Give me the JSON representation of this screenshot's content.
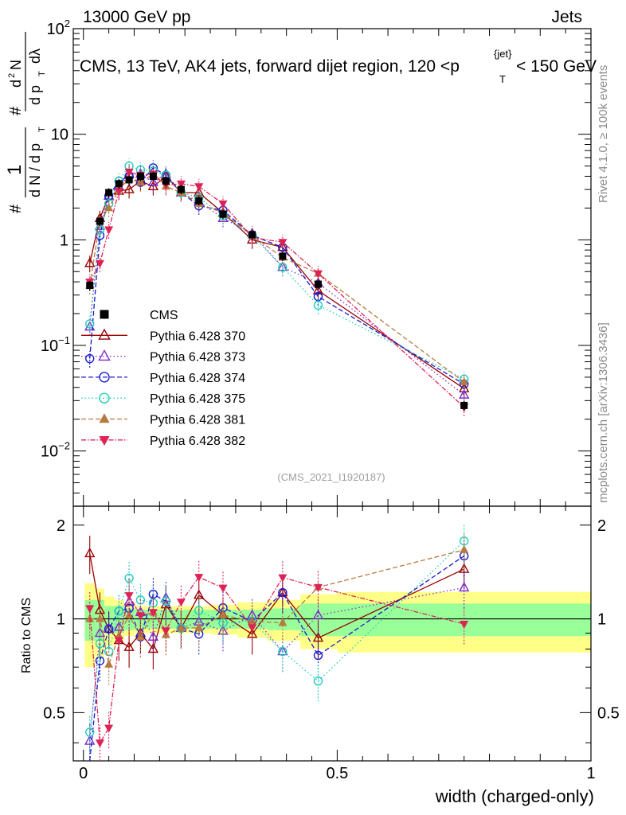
{
  "header": {
    "left": "13000 GeV pp",
    "right": "Jets",
    "title_main": "CMS, 13 TeV, AK4 jets, forward dijet region, 120 <p",
    "title_sup": "{jet}",
    "title_sub": "T",
    "title_tail": "< 150 GeV"
  },
  "side_labels": {
    "rivet": "Rivet 4.1.0, ≥ 100k events",
    "mcplots": "mcplots.cern.ch [arXiv:1306.3436]"
  },
  "watermark": "(CMS_2021_I1920187)",
  "chart_data": {
    "type": "scatter",
    "xlabel": "width (charged-only)",
    "ylabel_top": "1/dN/dp_T d²N/dp_T dλ",
    "ylabel_bottom": "Ratio to CMS",
    "xlim": [
      0,
      1
    ],
    "ylim_top": [
      0.003,
      100
    ],
    "ylim_bottom": [
      0.35,
      2.3
    ],
    "y_scale_top": "log",
    "legend_position": "middle-left",
    "x": [
      0.0125,
      0.0325,
      0.05,
      0.07,
      0.09,
      0.1125,
      0.1375,
      0.1625,
      0.1925,
      0.2275,
      0.275,
      0.3325,
      0.3925,
      0.4625,
      0.75
    ],
    "ref": {
      "name": "CMS",
      "values": [
        0.37,
        1.5,
        2.8,
        3.4,
        3.7,
        4.0,
        4.0,
        3.6,
        3.0,
        2.35,
        1.75,
        1.12,
        0.7,
        0.38,
        0.027
      ],
      "ratio_band_inner": [
        0.15,
        0.15,
        0.1,
        0.1,
        0.08,
        0.07,
        0.07,
        0.07,
        0.07,
        0.07,
        0.07,
        0.07,
        0.08,
        0.12,
        0.12
      ],
      "ratio_band_outer": [
        0.3,
        0.25,
        0.18,
        0.15,
        0.12,
        0.1,
        0.1,
        0.1,
        0.1,
        0.1,
        0.11,
        0.13,
        0.15,
        0.2,
        0.22
      ]
    },
    "series": [
      {
        "name": "Pythia 6.428 370",
        "color": "#990000",
        "marker": "triangle-open",
        "dash": "",
        "values": [
          0.6,
          1.6,
          2.6,
          2.9,
          3.0,
          3.6,
          3.2,
          4.0,
          2.8,
          2.8,
          1.8,
          1.0,
          0.85,
          0.33,
          0.039
        ]
      },
      {
        "name": "Pythia 6.428 373",
        "color": "#7b2ccc",
        "marker": "triangle-open",
        "dash": "1.5,3",
        "values": [
          0.15,
          1.35,
          2.6,
          3.2,
          4.2,
          4.2,
          3.5,
          4.2,
          2.8,
          2.3,
          1.6,
          1.15,
          0.55,
          0.39,
          0.034
        ]
      },
      {
        "name": "Pythia 6.428 374",
        "color": "#1a1acc",
        "marker": "circle-open",
        "dash": "6,3",
        "values": [
          0.075,
          1.1,
          2.6,
          3.6,
          4.0,
          3.5,
          4.8,
          4.1,
          2.8,
          2.1,
          1.9,
          1.1,
          0.85,
          0.29,
          0.043
        ]
      },
      {
        "name": "Pythia 6.428 375",
        "color": "#22ccbb",
        "marker": "circle-open",
        "dash": "1.5,3",
        "values": [
          0.16,
          1.25,
          2.2,
          3.6,
          5.0,
          4.6,
          4.5,
          4.1,
          2.8,
          2.5,
          1.7,
          1.1,
          0.55,
          0.24,
          0.048
        ]
      },
      {
        "name": "Pythia 6.428 381",
        "color": "#b87a40",
        "marker": "triangle-filled",
        "dash": "6,3",
        "values": [
          0.37,
          1.5,
          2.0,
          3.0,
          3.8,
          3.5,
          4.2,
          3.2,
          2.8,
          2.2,
          1.8,
          1.1,
          0.68,
          0.48,
          0.045
        ]
      },
      {
        "name": "Pythia 6.428 382",
        "color": "#dd2255",
        "marker": "triangle-down-filled",
        "dash": "6,2,1.5,2",
        "values": [
          0.4,
          0.6,
          1.25,
          2.9,
          4.4,
          4.1,
          4.2,
          3.3,
          3.4,
          3.2,
          2.2,
          1.05,
          0.95,
          0.48,
          0.026
        ]
      }
    ],
    "ticks_top": {
      "labels": [
        {
          "base": "10",
          "exp": "−2",
          "v": 0.01
        },
        {
          "base": "10",
          "exp": "−1",
          "v": 0.1
        },
        {
          "base": "1",
          "exp": "",
          "v": 1
        },
        {
          "base": "10",
          "exp": "",
          "v": 10
        },
        {
          "base": "10",
          "exp": "2",
          "v": 100
        }
      ]
    },
    "ticks_bottom": {
      "labels": [
        {
          "text": "0.5",
          "v": 0.5
        },
        {
          "text": "1",
          "v": 1
        },
        {
          "text": "2",
          "v": 2
        }
      ]
    },
    "ticks_x": {
      "labels": [
        {
          "text": "0",
          "v": 0
        },
        {
          "text": "0.5",
          "v": 0.5
        },
        {
          "text": "1",
          "v": 1
        }
      ]
    }
  }
}
